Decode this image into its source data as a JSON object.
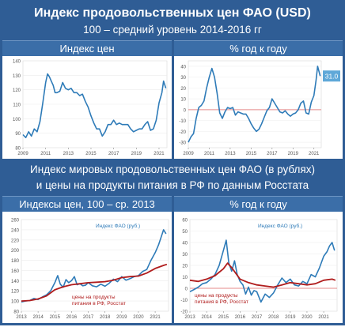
{
  "header": {
    "title_line1_prefix": "Индекс продовольственных цен ФАО",
    "title_line1_suffix": "(USD)",
    "title_line2": "100 – средний уровень 2014-2016 гг"
  },
  "middle": {
    "line1": "Индекс мировых продовольственных цен ФАО (в рублях)",
    "line2": "и цены на продукты питания в РФ по данным Росстата"
  },
  "colors": {
    "band": "#2f5d95",
    "fao": "#2e7bb8",
    "rf": "#b01c1c",
    "zero_line": "#e58a8a",
    "badge": "#5fa8d8"
  },
  "chart_data": [
    {
      "type": "line",
      "title": "Индекс цен",
      "x_ticks": [
        "2009",
        "2011",
        "2013",
        "2015",
        "2017",
        "2019",
        "2021"
      ],
      "y_ticks": [
        80,
        90,
        100,
        110,
        120,
        130,
        140
      ],
      "ylim": [
        80,
        140
      ],
      "xlim": [
        2009,
        2021.7
      ],
      "series": [
        {
          "values": [
            [
              2009,
              89
            ],
            [
              2009.25,
              87
            ],
            [
              2009.5,
              91
            ],
            [
              2009.75,
              88
            ],
            [
              2010,
              93
            ],
            [
              2010.25,
              91
            ],
            [
              2010.5,
              98
            ],
            [
              2010.75,
              111
            ],
            [
              2011,
              125
            ],
            [
              2011.17,
              131
            ],
            [
              2011.33,
              129
            ],
            [
              2011.5,
              126
            ],
            [
              2011.67,
              123
            ],
            [
              2011.83,
              118
            ],
            [
              2012,
              118
            ],
            [
              2012.25,
              119
            ],
            [
              2012.5,
              125
            ],
            [
              2012.75,
              121
            ],
            [
              2013,
              120
            ],
            [
              2013.25,
              121
            ],
            [
              2013.5,
              118
            ],
            [
              2013.75,
              118
            ],
            [
              2014,
              116
            ],
            [
              2014.25,
              117
            ],
            [
              2014.5,
              112
            ],
            [
              2014.75,
              108
            ],
            [
              2015,
              102
            ],
            [
              2015.25,
              97
            ],
            [
              2015.5,
              93
            ],
            [
              2015.75,
              93
            ],
            [
              2016,
              88
            ],
            [
              2016.25,
              91
            ],
            [
              2016.5,
              96
            ],
            [
              2016.75,
              96
            ],
            [
              2017,
              99
            ],
            [
              2017.25,
              96
            ],
            [
              2017.5,
              97
            ],
            [
              2017.75,
              96
            ],
            [
              2018,
              96
            ],
            [
              2018.25,
              96
            ],
            [
              2018.5,
              93
            ],
            [
              2018.75,
              91
            ],
            [
              2019,
              92
            ],
            [
              2019.25,
              93
            ],
            [
              2019.5,
              93
            ],
            [
              2019.75,
              96
            ],
            [
              2020,
              98
            ],
            [
              2020.25,
              92
            ],
            [
              2020.5,
              93
            ],
            [
              2020.75,
              99
            ],
            [
              2021,
              111
            ],
            [
              2021.25,
              118
            ],
            [
              2021.4,
              126
            ],
            [
              2021.6,
              121
            ]
          ]
        }
      ]
    },
    {
      "type": "line",
      "title": "% год к году",
      "x_ticks": [
        "2009",
        "2011",
        "2013",
        "2015",
        "2017",
        "2019",
        "2021"
      ],
      "y_ticks": [
        -30,
        -20,
        -10,
        0,
        10,
        20,
        30,
        40
      ],
      "ylim": [
        -35,
        45
      ],
      "xlim": [
        2009,
        2021.7
      ],
      "annotation": "31.0",
      "series": [
        {
          "values": [
            [
              2009,
              -30
            ],
            [
              2009.25,
              -25
            ],
            [
              2009.5,
              -22
            ],
            [
              2009.75,
              -8
            ],
            [
              2010,
              2
            ],
            [
              2010.25,
              4
            ],
            [
              2010.5,
              8
            ],
            [
              2010.75,
              20
            ],
            [
              2011,
              30
            ],
            [
              2011.25,
              38
            ],
            [
              2011.5,
              30
            ],
            [
              2011.75,
              15
            ],
            [
              2012,
              -3
            ],
            [
              2012.25,
              -8
            ],
            [
              2012.5,
              -2
            ],
            [
              2012.75,
              2
            ],
            [
              2013,
              1
            ],
            [
              2013.25,
              2
            ],
            [
              2013.5,
              -5
            ],
            [
              2013.75,
              -2
            ],
            [
              2014,
              -3
            ],
            [
              2014.25,
              -4
            ],
            [
              2014.5,
              -4
            ],
            [
              2014.75,
              -8
            ],
            [
              2015,
              -13
            ],
            [
              2015.25,
              -17
            ],
            [
              2015.5,
              -20
            ],
            [
              2015.75,
              -18
            ],
            [
              2016,
              -13
            ],
            [
              2016.25,
              -7
            ],
            [
              2016.5,
              -1
            ],
            [
              2016.75,
              2
            ],
            [
              2017,
              10
            ],
            [
              2017.25,
              6
            ],
            [
              2017.5,
              2
            ],
            [
              2017.75,
              -2
            ],
            [
              2018,
              -3
            ],
            [
              2018.25,
              -1
            ],
            [
              2018.5,
              -4
            ],
            [
              2018.75,
              -6
            ],
            [
              2019,
              -4
            ],
            [
              2019.25,
              -3
            ],
            [
              2019.5,
              0
            ],
            [
              2019.75,
              6
            ],
            [
              2020,
              8
            ],
            [
              2020.25,
              -3
            ],
            [
              2020.5,
              -4
            ],
            [
              2020.75,
              7
            ],
            [
              2021,
              13
            ],
            [
              2021.2,
              27
            ],
            [
              2021.35,
              40
            ],
            [
              2021.6,
              31
            ]
          ]
        }
      ]
    },
    {
      "type": "line",
      "title": "Индексы цен, 100 – ср. 2013",
      "x_ticks": [
        "2013",
        "2014",
        "2015",
        "2016",
        "2017",
        "2018",
        "2019",
        "2020",
        "2021"
      ],
      "y_ticks": [
        80,
        100,
        120,
        140,
        160,
        180,
        200,
        220,
        240,
        260
      ],
      "ylim": [
        80,
        260
      ],
      "xlim": [
        2013,
        2021.8
      ],
      "series": [
        {
          "name": "Индекс ФАО (руб.)",
          "values": [
            [
              2013,
              98
            ],
            [
              2013.25,
              100
            ],
            [
              2013.5,
              101
            ],
            [
              2013.75,
              105
            ],
            [
              2014,
              103
            ],
            [
              2014.25,
              108
            ],
            [
              2014.5,
              112
            ],
            [
              2014.75,
              120
            ],
            [
              2015,
              136
            ],
            [
              2015.17,
              150
            ],
            [
              2015.33,
              133
            ],
            [
              2015.5,
              127
            ],
            [
              2015.67,
              142
            ],
            [
              2015.83,
              136
            ],
            [
              2016,
              140
            ],
            [
              2016.17,
              148
            ],
            [
              2016.33,
              132
            ],
            [
              2016.5,
              134
            ],
            [
              2016.67,
              130
            ],
            [
              2016.83,
              131
            ],
            [
              2017,
              136
            ],
            [
              2017.25,
              130
            ],
            [
              2017.5,
              128
            ],
            [
              2017.75,
              133
            ],
            [
              2018,
              129
            ],
            [
              2018.25,
              135
            ],
            [
              2018.5,
              143
            ],
            [
              2018.75,
              138
            ],
            [
              2019,
              148
            ],
            [
              2019.25,
              141
            ],
            [
              2019.5,
              144
            ],
            [
              2019.75,
              148
            ],
            [
              2020,
              150
            ],
            [
              2020.25,
              158
            ],
            [
              2020.5,
              162
            ],
            [
              2020.75,
              180
            ],
            [
              2021,
              195
            ],
            [
              2021.2,
              210
            ],
            [
              2021.35,
              225
            ],
            [
              2021.5,
              240
            ],
            [
              2021.65,
              232
            ]
          ]
        },
        {
          "name": "цены на продукты питания в РФ, Росстат",
          "values": [
            [
              2013,
              100
            ],
            [
              2013.5,
              101
            ],
            [
              2014,
              104
            ],
            [
              2014.5,
              110
            ],
            [
              2015,
              122
            ],
            [
              2015.5,
              128
            ],
            [
              2016,
              132
            ],
            [
              2016.5,
              134
            ],
            [
              2017,
              136
            ],
            [
              2017.5,
              137
            ],
            [
              2018,
              138
            ],
            [
              2018.5,
              141
            ],
            [
              2019,
              146
            ],
            [
              2019.5,
              148
            ],
            [
              2020,
              149
            ],
            [
              2020.5,
              155
            ],
            [
              2021,
              164
            ],
            [
              2021.5,
              170
            ],
            [
              2021.7,
              172
            ]
          ]
        }
      ]
    },
    {
      "type": "line",
      "title": "% год к году",
      "x_ticks": [
        "2013",
        "2014",
        "2015",
        "2016",
        "2017",
        "2018",
        "2019",
        "2020",
        "2021"
      ],
      "y_ticks": [
        -20,
        -10,
        0,
        10,
        20,
        30,
        40,
        50,
        60
      ],
      "ylim": [
        -20,
        60
      ],
      "xlim": [
        2013,
        2021.8
      ],
      "series": [
        {
          "name": "Индекс ФАО (руб.)",
          "values": [
            [
              2013,
              -3
            ],
            [
              2013.25,
              -1
            ],
            [
              2013.5,
              1
            ],
            [
              2013.75,
              4
            ],
            [
              2014,
              5
            ],
            [
              2014.25,
              8
            ],
            [
              2014.5,
              12
            ],
            [
              2014.75,
              20
            ],
            [
              2015,
              33
            ],
            [
              2015.17,
              42
            ],
            [
              2015.33,
              22
            ],
            [
              2015.5,
              15
            ],
            [
              2015.67,
              24
            ],
            [
              2015.83,
              12
            ],
            [
              2016,
              6
            ],
            [
              2016.17,
              3
            ],
            [
              2016.33,
              -5
            ],
            [
              2016.5,
              1
            ],
            [
              2016.67,
              -6
            ],
            [
              2016.83,
              -2
            ],
            [
              2017,
              -3
            ],
            [
              2017.25,
              -12
            ],
            [
              2017.5,
              -5
            ],
            [
              2017.75,
              -8
            ],
            [
              2018,
              -4
            ],
            [
              2018.25,
              3
            ],
            [
              2018.5,
              9
            ],
            [
              2018.75,
              5
            ],
            [
              2019,
              8
            ],
            [
              2019.25,
              3
            ],
            [
              2019.5,
              2
            ],
            [
              2019.75,
              6
            ],
            [
              2020,
              4
            ],
            [
              2020.25,
              12
            ],
            [
              2020.5,
              10
            ],
            [
              2020.75,
              18
            ],
            [
              2021,
              28
            ],
            [
              2021.2,
              32
            ],
            [
              2021.35,
              37
            ],
            [
              2021.5,
              40
            ],
            [
              2021.65,
              33
            ]
          ]
        },
        {
          "name": "цены на продукты питания в РФ, Росстат",
          "values": [
            [
              2013,
              7
            ],
            [
              2013.5,
              6
            ],
            [
              2014,
              8
            ],
            [
              2014.5,
              11
            ],
            [
              2015,
              17
            ],
            [
              2015.25,
              22
            ],
            [
              2015.5,
              18
            ],
            [
              2015.75,
              13
            ],
            [
              2016,
              8
            ],
            [
              2016.5,
              5
            ],
            [
              2017,
              3
            ],
            [
              2017.5,
              2
            ],
            [
              2018,
              1
            ],
            [
              2018.5,
              3
            ],
            [
              2019,
              5
            ],
            [
              2019.5,
              4
            ],
            [
              2020,
              3
            ],
            [
              2020.5,
              4
            ],
            [
              2021,
              7
            ],
            [
              2021.5,
              8
            ],
            [
              2021.7,
              7
            ]
          ]
        }
      ]
    }
  ]
}
